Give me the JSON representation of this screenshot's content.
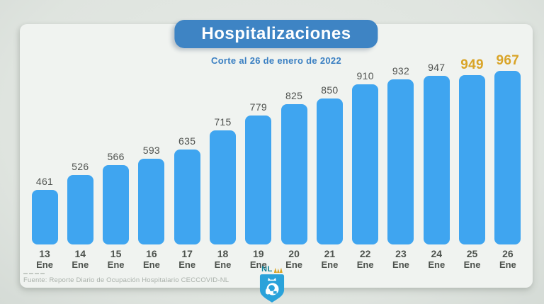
{
  "header": {
    "title": "Hospitalizaciones",
    "subtitle": "Corte al 26 de enero de 2022"
  },
  "chart_data": {
    "type": "bar",
    "title": "Hospitalizaciones",
    "subtitle": "Corte al 26 de enero de 2022",
    "categories": [
      "13 Ene",
      "14 Ene",
      "15 Ene",
      "16 Ene",
      "17 Ene",
      "18 Ene",
      "19 Ene",
      "20 Ene",
      "21 Ene",
      "22 Ene",
      "23 Ene",
      "24 Ene",
      "25 Ene",
      "26 Ene"
    ],
    "values": [
      461,
      526,
      566,
      593,
      635,
      715,
      779,
      825,
      850,
      910,
      932,
      947,
      949,
      967
    ],
    "xlabel": "",
    "ylabel": "",
    "ylim": [
      0,
      1000
    ],
    "grid": false,
    "legend": false,
    "value_labels_shown": true,
    "highlight_indices": [
      12,
      13
    ],
    "bar_color": "#3fa5f0",
    "highlight_color": "#d9a427"
  },
  "footer": {
    "source": "Fuente: Reporte Diario de Ocupación Hospitalario CECCOVID-NL"
  },
  "logo": {
    "text": "NL"
  },
  "colors": {
    "title_pill": "#3e84c4",
    "subtitle_text": "#3a7fc2",
    "bar": "#3fa5f0",
    "highlight": "#d9a427",
    "card_bg": "#f0f3f0",
    "page_bg": "#dfe4df"
  }
}
